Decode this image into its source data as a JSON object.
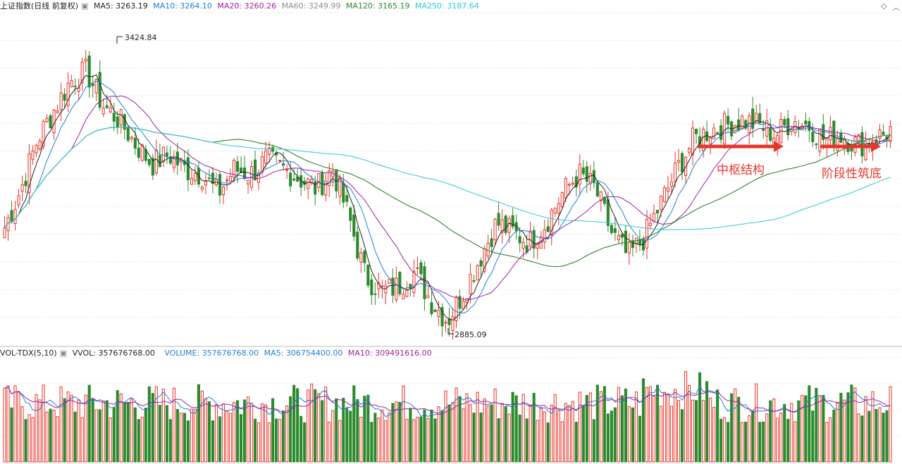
{
  "price_legend": {
    "title": "上证指数(日线 前复权)",
    "ma5": "MA5: 3263.19",
    "ma10": "MA10: 3264.10",
    "ma20": "MA20: 3260.26",
    "ma60": "MA60: 3249.99",
    "ma120": "MA120: 3165.19",
    "ma250": "MA250: 3187.64"
  },
  "volume_legend": {
    "title": "VOL-TDX(5,10)",
    "vvol": "VVOL: 357676768.00",
    "volume": "VOLUME: 357676768.00",
    "ma5": "MA5: 306754400.00",
    "ma10": "MA10: 309491616.00"
  },
  "annotations": {
    "high_label": "3424.84",
    "low_label": "2885.09",
    "pivot_label": "中枢结构",
    "stage_bottom_label": "阶段性筑底"
  },
  "colors": {
    "up": "#e8352a",
    "down": "#2d8a2d",
    "ma5": "#222222",
    "ma10": "#1e7fd6",
    "ma20": "#a020a0",
    "ma60": "#8c8c8c",
    "ma120": "#2a8a2a",
    "ma250": "#2ec8d8",
    "grid": "#d0d0d0"
  },
  "chart_data": {
    "type": "candlestick",
    "high": 3424.84,
    "low": 2885.09,
    "last_ma_values": {
      "MA5": 3263.19,
      "MA10": 3264.1,
      "MA20": 3260.26,
      "MA60": 3249.99,
      "MA120": 3165.19,
      "MA250": 3187.64
    },
    "volume_last": 357676768.0,
    "volume_ma5": 306754400.0,
    "volume_ma10": 309491616.0,
    "close_path": [
      3080,
      3160,
      3260,
      3320,
      3380,
      3400,
      3330,
      3300,
      3250,
      3210,
      3230,
      3200,
      3190,
      3150,
      3200,
      3190,
      3220,
      3200,
      3180,
      3160,
      3200,
      3100,
      2980,
      2950,
      2960,
      2990,
      2930,
      2890,
      2950,
      3020,
      3090,
      3070,
      3050,
      3090,
      3150,
      3190,
      3160,
      3070,
      3020,
      3060,
      3130,
      3200,
      3260,
      3280,
      3290,
      3300,
      3290,
      3270,
      3300,
      3290,
      3260,
      3270,
      3250,
      3260,
      3280
    ],
    "candle_count": 252,
    "grid": true
  }
}
